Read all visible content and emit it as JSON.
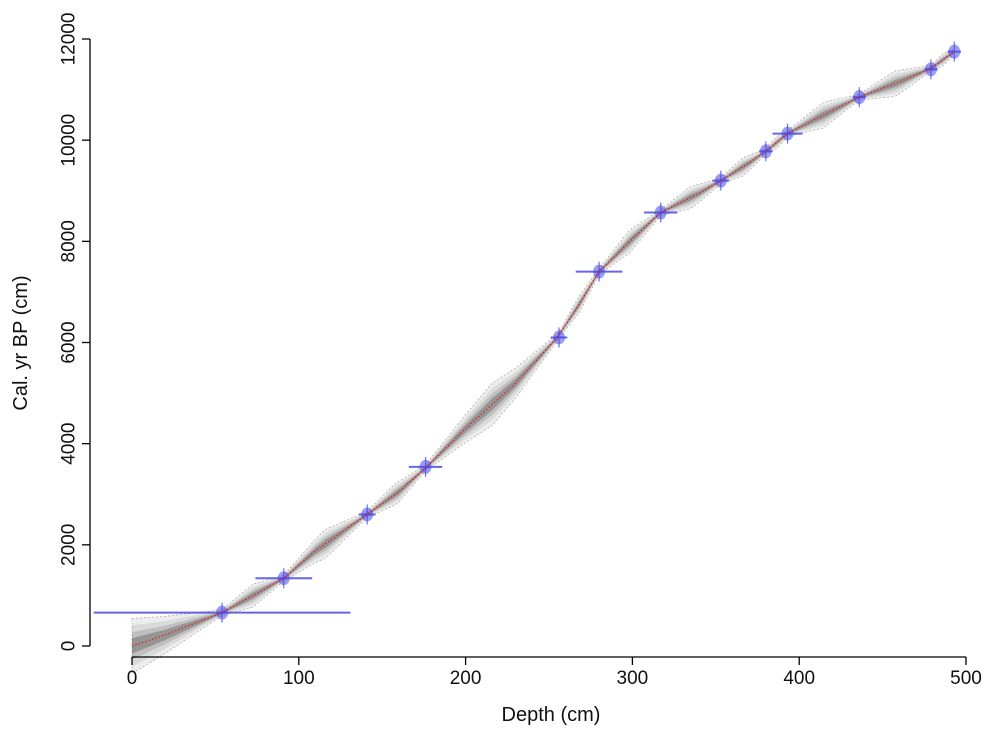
{
  "chart_data": {
    "type": "line",
    "xlabel": "Depth (cm)",
    "ylabel": "Cal. yr BP (cm)",
    "xlim": [
      0,
      500
    ],
    "ylim": [
      0,
      12000
    ],
    "x_ticks": [
      0,
      100,
      200,
      300,
      400,
      500
    ],
    "y_ticks": [
      0,
      2000,
      4000,
      6000,
      8000,
      10000,
      12000
    ],
    "grid": false,
    "series": [
      {
        "type": "line",
        "x": [
          0,
          20,
          40,
          54,
          70,
          91,
          110,
          140,
          160,
          176,
          200,
          230,
          255,
          268,
          280,
          300,
          317,
          340,
          353,
          370,
          380,
          393,
          410,
          436,
          460,
          479,
          493
        ],
        "y": [
          0,
          220,
          480,
          660,
          950,
          1340,
          1880,
          2580,
          3050,
          3520,
          4300,
          5200,
          6100,
          6750,
          7400,
          8050,
          8570,
          8950,
          9200,
          9550,
          9780,
          10130,
          10420,
          10850,
          11150,
          11420,
          11750
        ],
        "color": "#ff0000"
      }
    ],
    "dates": [
      {
        "depth": 54,
        "age": 660,
        "half_width": 77
      },
      {
        "depth": 91,
        "age": 1340,
        "half_width": 17
      },
      {
        "depth": 141,
        "age": 2600,
        "half_width": 5
      },
      {
        "depth": 176,
        "age": 3540,
        "half_width": 10
      },
      {
        "depth": 256,
        "age": 6100,
        "half_width": 5
      },
      {
        "depth": 280,
        "age": 7400,
        "half_width": 14
      },
      {
        "depth": 317,
        "age": 8570,
        "half_width": 10
      },
      {
        "depth": 353,
        "age": 9200,
        "half_width": 5
      },
      {
        "depth": 380,
        "age": 9780,
        "half_width": 4
      },
      {
        "depth": 393,
        "age": 10130,
        "half_width": 9
      },
      {
        "depth": 436,
        "age": 10850,
        "half_width": 4
      },
      {
        "depth": 479,
        "age": 11400,
        "half_width": 4
      },
      {
        "depth": 493,
        "age": 11750,
        "half_width": 4
      }
    ],
    "colors": {
      "model": "#ff0000",
      "envelope": "#000000",
      "dates": "#4a4ae6"
    }
  }
}
